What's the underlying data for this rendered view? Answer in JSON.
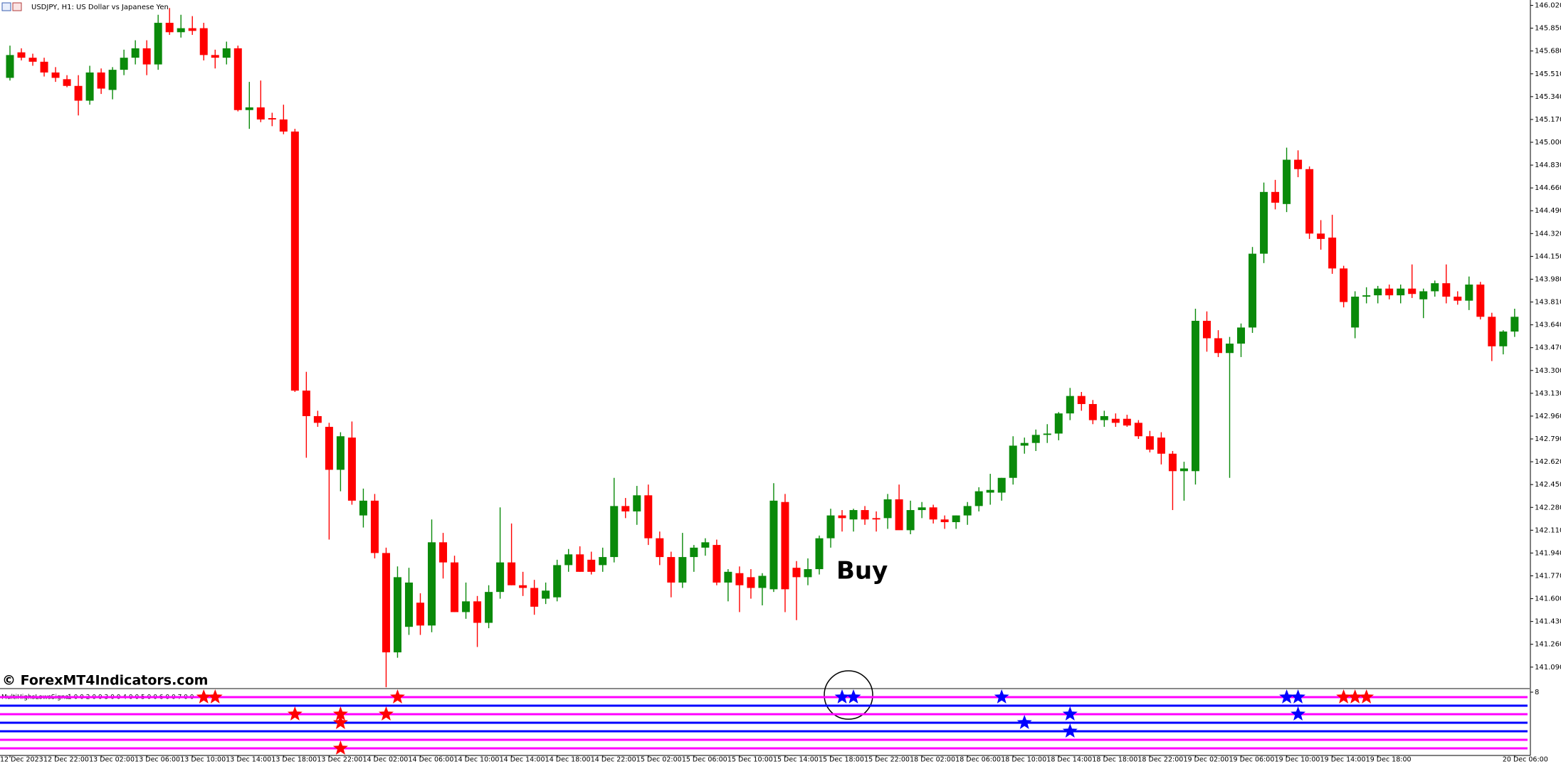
{
  "chart_data": [
    {
      "type": "candlestick",
      "title": "USDJPY, H1:  US Dollar vs Japanese Yen",
      "watermark": "© ForexMT4Indicators.com",
      "annotation": "Buy",
      "up_color": "#0a8a0a",
      "down_color": "#ff0000",
      "ylim": [
        140.93,
        146.06
      ],
      "yticks": [
        {
          "value": 146.02,
          "label": "146.020"
        },
        {
          "value": 145.85,
          "label": "145.850"
        },
        {
          "value": 145.68,
          "label": "145.680"
        },
        {
          "value": 145.51,
          "label": "145.510"
        },
        {
          "value": 145.34,
          "label": "145.340"
        },
        {
          "value": 145.17,
          "label": "145.170"
        },
        {
          "value": 145.0,
          "label": "145.000"
        },
        {
          "value": 144.83,
          "label": "144.830"
        },
        {
          "value": 144.66,
          "label": "144.660"
        },
        {
          "value": 144.49,
          "label": "144.490"
        },
        {
          "value": 144.32,
          "label": "144.320"
        },
        {
          "value": 144.15,
          "label": "144.150"
        },
        {
          "value": 143.98,
          "label": "143.980"
        },
        {
          "value": 143.81,
          "label": "143.810"
        },
        {
          "value": 143.64,
          "label": "143.640"
        },
        {
          "value": 143.47,
          "label": "143.470"
        },
        {
          "value": 143.3,
          "label": "143.300"
        },
        {
          "value": 143.13,
          "label": "143.130"
        },
        {
          "value": 142.96,
          "label": "142.960"
        },
        {
          "value": 142.79,
          "label": "142.790"
        },
        {
          "value": 142.62,
          "label": "142.620"
        },
        {
          "value": 142.45,
          "label": "142.450"
        },
        {
          "value": 142.28,
          "label": "142.280"
        },
        {
          "value": 142.11,
          "label": "142.110"
        },
        {
          "value": 141.94,
          "label": "141.940"
        },
        {
          "value": 141.77,
          "label": "141.770"
        },
        {
          "value": 141.6,
          "label": "141.600"
        },
        {
          "value": 141.43,
          "label": "141.430"
        },
        {
          "value": 141.26,
          "label": "141.260"
        },
        {
          "value": 141.09,
          "label": "141.090"
        }
      ],
      "categories": [
        "12 Dec 2023",
        null,
        null,
        null,
        "12 Dec 22:00",
        null,
        null,
        null,
        "13 Dec 02:00",
        null,
        null,
        null,
        "13 Dec 06:00",
        null,
        null,
        null,
        "13 Dec 10:00",
        null,
        null,
        null,
        "13 Dec 14:00",
        null,
        null,
        null,
        "13 Dec 18:00",
        null,
        null,
        null,
        "13 Dec 22:00",
        null,
        null,
        null,
        "14 Dec 02:00",
        null,
        null,
        null,
        "14 Dec 06:00",
        null,
        null,
        null,
        "14 Dec 10:00",
        null,
        null,
        null,
        "14 Dec 14:00",
        null,
        null,
        null,
        "14 Dec 18:00",
        null,
        null,
        null,
        "14 Dec 22:00",
        null,
        null,
        null,
        "15 Dec 02:00",
        null,
        null,
        null,
        "15 Dec 06:00",
        null,
        null,
        null,
        "15 Dec 10:00",
        null,
        null,
        null,
        "15 Dec 14:00",
        null,
        null,
        null,
        "15 Dec 18:00",
        null,
        null,
        null,
        "15 Dec 22:00",
        null,
        null,
        null,
        "18 Dec 02:00",
        null,
        null,
        null,
        "18 Dec 06:00",
        null,
        null,
        null,
        "18 Dec 10:00",
        null,
        null,
        null,
        "18 Dec 14:00",
        null,
        null,
        null,
        "18 Dec 18:00",
        null,
        null,
        null,
        "18 Dec 22:00",
        null,
        null,
        null,
        "19 Dec 02:00",
        null,
        null,
        null,
        "19 Dec 06:00",
        null,
        null,
        null,
        "19 Dec 10:00",
        null,
        null,
        null,
        "19 Dec 14:00",
        null,
        null,
        null,
        "19 Dec 18:00",
        null,
        null,
        null,
        null,
        null,
        null,
        null,
        null,
        null,
        null,
        null,
        "20 Dec 06:00",
        null
      ],
      "ohlc": [
        [
          145.48,
          145.72,
          145.46,
          145.65
        ],
        [
          145.67,
          145.7,
          145.61,
          145.63
        ],
        [
          145.63,
          145.66,
          145.57,
          145.6
        ],
        [
          145.6,
          145.63,
          145.49,
          145.52
        ],
        [
          145.52,
          145.56,
          145.45,
          145.48
        ],
        [
          145.47,
          145.5,
          145.41,
          145.42
        ],
        [
          145.42,
          145.5,
          145.2,
          145.31
        ],
        [
          145.31,
          145.57,
          145.28,
          145.52
        ],
        [
          145.52,
          145.55,
          145.36,
          145.4
        ],
        [
          145.39,
          145.56,
          145.32,
          145.54
        ],
        [
          145.54,
          145.69,
          145.5,
          145.63
        ],
        [
          145.63,
          145.76,
          145.58,
          145.7
        ],
        [
          145.7,
          145.76,
          145.5,
          145.58
        ],
        [
          145.58,
          145.95,
          145.54,
          145.89
        ],
        [
          145.89,
          146.0,
          145.8,
          145.82
        ],
        [
          145.82,
          145.95,
          145.78,
          145.85
        ],
        [
          145.85,
          145.94,
          145.8,
          145.83
        ],
        [
          145.85,
          145.89,
          145.61,
          145.65
        ],
        [
          145.65,
          145.69,
          145.55,
          145.63
        ],
        [
          145.63,
          145.75,
          145.58,
          145.7
        ],
        [
          145.7,
          145.72,
          145.23,
          145.24
        ],
        [
          145.24,
          145.45,
          145.1,
          145.26
        ],
        [
          145.26,
          145.46,
          145.15,
          145.17
        ],
        [
          145.18,
          145.22,
          145.12,
          145.17
        ],
        [
          145.17,
          145.28,
          145.06,
          145.08
        ],
        [
          145.08,
          145.1,
          143.14,
          143.15
        ],
        [
          143.15,
          143.29,
          142.65,
          142.96
        ],
        [
          142.96,
          143.0,
          142.88,
          142.91
        ],
        [
          142.88,
          142.91,
          142.04,
          142.56
        ],
        [
          142.56,
          142.84,
          142.4,
          142.81
        ],
        [
          142.8,
          142.92,
          142.3,
          142.33
        ],
        [
          142.22,
          142.42,
          142.13,
          142.33
        ],
        [
          142.33,
          142.38,
          141.9,
          141.94
        ],
        [
          141.94,
          141.98,
          140.94,
          141.2
        ],
        [
          141.2,
          141.84,
          141.16,
          141.76
        ],
        [
          141.39,
          141.83,
          141.33,
          141.72
        ],
        [
          141.57,
          141.64,
          141.33,
          141.4
        ],
        [
          141.4,
          142.19,
          141.35,
          142.02
        ],
        [
          142.02,
          142.09,
          141.75,
          141.87
        ],
        [
          141.87,
          141.92,
          141.5,
          141.5
        ],
        [
          141.5,
          141.72,
          141.45,
          141.58
        ],
        [
          141.58,
          141.62,
          141.24,
          141.42
        ],
        [
          141.42,
          141.7,
          141.38,
          141.65
        ],
        [
          141.65,
          142.28,
          141.6,
          141.87
        ],
        [
          141.87,
          142.16,
          141.7,
          141.7
        ],
        [
          141.7,
          141.8,
          141.62,
          141.68
        ],
        [
          141.68,
          141.74,
          141.48,
          141.54
        ],
        [
          141.6,
          141.72,
          141.56,
          141.66
        ],
        [
          141.61,
          141.89,
          141.58,
          141.85
        ],
        [
          141.85,
          141.97,
          141.8,
          141.93
        ],
        [
          141.93,
          141.99,
          141.8,
          141.8
        ],
        [
          141.89,
          141.95,
          141.78,
          141.8
        ],
        [
          141.85,
          141.98,
          141.8,
          141.91
        ],
        [
          141.91,
          142.5,
          141.87,
          142.29
        ],
        [
          142.29,
          142.35,
          142.2,
          142.25
        ],
        [
          142.25,
          142.44,
          142.15,
          142.37
        ],
        [
          142.37,
          142.45,
          142.0,
          142.05
        ],
        [
          142.05,
          142.1,
          141.85,
          141.91
        ],
        [
          141.91,
          141.95,
          141.61,
          141.72
        ],
        [
          141.72,
          142.09,
          141.68,
          141.91
        ],
        [
          141.91,
          142.0,
          141.8,
          141.98
        ],
        [
          141.98,
          142.05,
          141.92,
          142.02
        ],
        [
          142.0,
          142.04,
          141.7,
          141.72
        ],
        [
          141.72,
          141.82,
          141.58,
          141.8
        ],
        [
          141.79,
          141.84,
          141.5,
          141.7
        ],
        [
          141.76,
          141.82,
          141.6,
          141.68
        ],
        [
          141.68,
          141.79,
          141.55,
          141.77
        ],
        [
          141.67,
          142.46,
          141.65,
          142.33
        ],
        [
          142.32,
          142.38,
          141.5,
          141.67
        ],
        [
          141.83,
          141.88,
          141.44,
          141.76
        ],
        [
          141.76,
          141.9,
          141.7,
          141.82
        ],
        [
          141.82,
          142.07,
          141.78,
          142.05
        ],
        [
          142.05,
          142.27,
          141.98,
          142.22
        ],
        [
          142.22,
          142.26,
          142.1,
          142.2
        ],
        [
          142.19,
          142.27,
          142.1,
          142.26
        ],
        [
          142.26,
          142.29,
          142.15,
          142.19
        ],
        [
          142.2,
          142.25,
          142.1,
          142.19
        ],
        [
          142.2,
          142.38,
          142.12,
          142.34
        ],
        [
          142.34,
          142.45,
          142.13,
          142.11
        ],
        [
          142.11,
          142.33,
          142.08,
          142.26
        ],
        [
          142.26,
          142.32,
          142.2,
          142.28
        ],
        [
          142.28,
          142.3,
          142.16,
          142.19
        ],
        [
          142.19,
          142.22,
          142.12,
          142.17
        ],
        [
          142.17,
          142.22,
          142.12,
          142.22
        ],
        [
          142.22,
          142.32,
          142.15,
          142.29
        ],
        [
          142.29,
          142.43,
          142.25,
          142.4
        ],
        [
          142.39,
          142.53,
          142.3,
          142.41
        ],
        [
          142.39,
          142.5,
          142.33,
          142.5
        ],
        [
          142.5,
          142.81,
          142.45,
          142.74
        ],
        [
          142.74,
          142.8,
          142.68,
          142.76
        ],
        [
          142.76,
          142.86,
          142.7,
          142.82
        ],
        [
          142.82,
          142.9,
          142.76,
          142.83
        ],
        [
          142.83,
          142.99,
          142.78,
          142.98
        ],
        [
          142.98,
          143.17,
          142.93,
          143.11
        ],
        [
          143.11,
          143.14,
          143.0,
          143.05
        ],
        [
          143.05,
          143.08,
          142.9,
          142.93
        ],
        [
          142.93,
          143.0,
          142.88,
          142.96
        ],
        [
          142.94,
          142.98,
          142.88,
          142.91
        ],
        [
          142.94,
          142.97,
          142.88,
          142.89
        ],
        [
          142.91,
          142.93,
          142.79,
          142.81
        ],
        [
          142.81,
          142.85,
          142.69,
          142.71
        ],
        [
          142.8,
          142.84,
          142.6,
          142.68
        ],
        [
          142.68,
          142.7,
          142.26,
          142.55
        ],
        [
          142.55,
          142.62,
          142.33,
          142.57
        ],
        [
          142.55,
          143.76,
          142.45,
          143.67
        ],
        [
          143.67,
          143.74,
          143.44,
          143.54
        ],
        [
          143.54,
          143.6,
          143.4,
          143.43
        ],
        [
          143.43,
          143.55,
          142.5,
          143.5
        ],
        [
          143.5,
          143.65,
          143.4,
          143.62
        ],
        [
          143.62,
          144.22,
          143.58,
          144.17
        ],
        [
          144.17,
          144.7,
          144.1,
          144.63
        ],
        [
          144.63,
          144.72,
          144.5,
          144.55
        ],
        [
          144.54,
          144.96,
          144.48,
          144.87
        ],
        [
          144.87,
          144.94,
          144.74,
          144.8
        ],
        [
          144.8,
          144.82,
          144.28,
          144.32
        ],
        [
          144.32,
          144.42,
          144.2,
          144.28
        ],
        [
          144.29,
          144.46,
          144.02,
          144.06
        ],
        [
          144.06,
          144.08,
          143.77,
          143.81
        ],
        [
          143.62,
          143.89,
          143.54,
          143.85
        ],
        [
          143.85,
          143.92,
          143.8,
          143.86
        ],
        [
          143.86,
          143.93,
          143.8,
          143.91
        ],
        [
          143.91,
          143.94,
          143.83,
          143.86
        ],
        [
          143.86,
          143.94,
          143.8,
          143.91
        ],
        [
          143.91,
          144.09,
          143.84,
          143.87
        ],
        [
          143.83,
          143.91,
          143.69,
          143.89
        ],
        [
          143.89,
          143.97,
          143.85,
          143.95
        ],
        [
          143.95,
          144.09,
          143.8,
          143.85
        ],
        [
          143.85,
          143.89,
          143.79,
          143.82
        ],
        [
          143.82,
          144.0,
          143.75,
          143.94
        ],
        [
          143.94,
          143.96,
          143.68,
          143.7
        ],
        [
          143.7,
          143.73,
          143.37,
          143.48
        ],
        [
          143.48,
          143.6,
          143.42,
          143.59
        ],
        [
          143.59,
          143.76,
          143.55,
          143.7
        ]
      ]
    },
    {
      "type": "signals",
      "label": "MultiHighsLowsSignal",
      "label_values": "1 0 0 2 0 0 3 0 0 4 0 0 5 0 0 6 0 0 7 0 0",
      "ylim": [
        0,
        8
      ],
      "yticks": [
        8
      ],
      "levels": [
        7,
        6,
        5,
        4,
        3,
        2,
        1
      ],
      "level_colors": [
        "#ff00ff",
        "#0000ff",
        "#ff00ff",
        "#0000ff",
        "#0000ff",
        "#ff00ff",
        "#ff00ff"
      ],
      "series": [
        {
          "color": "#ff0000",
          "x": [
            17,
            18,
            34,
            25,
            29,
            33,
            29,
            29,
            117,
            118,
            119
          ],
          "values": [
            7,
            7,
            7,
            5,
            5,
            5,
            4,
            1,
            7,
            7,
            7
          ]
        },
        {
          "color": "#0000ff",
          "x": [
            73,
            74,
            87,
            112,
            113,
            93,
            113,
            89,
            93
          ],
          "values": [
            7,
            7,
            7,
            7,
            7,
            5,
            5,
            4,
            3
          ]
        }
      ]
    }
  ]
}
